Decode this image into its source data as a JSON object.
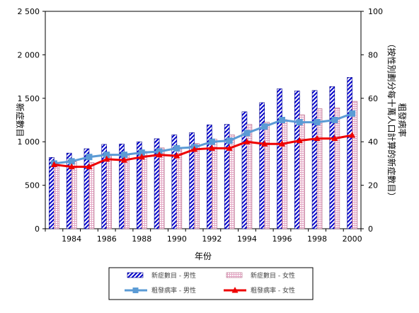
{
  "chart_data": {
    "type": "bar",
    "x": [
      1983,
      1984,
      1985,
      1986,
      1987,
      1988,
      1989,
      1990,
      1991,
      1992,
      1993,
      1994,
      1995,
      1996,
      1997,
      1998,
      1999,
      2000
    ],
    "x_tick_labels": [
      "1984",
      "1986",
      "1988",
      "1990",
      "1992",
      "1994",
      "1996",
      "1998",
      "2000"
    ],
    "x_tick_values": [
      1984,
      1986,
      1988,
      1990,
      1992,
      1994,
      1996,
      1998,
      2000
    ],
    "xlabel": "年份",
    "ylabel_left": "新症數目",
    "ylabel_right": "粗發病率\n（按性別劃分每十萬人口計算的新症數目）",
    "ylim_left": [
      0,
      2500
    ],
    "ylim_right": [
      0,
      100
    ],
    "y_ticks_left": [
      "0",
      "500",
      "1 000",
      "1 500",
      "2 000",
      "2 500"
    ],
    "y_ticks_right": [
      "0",
      "20",
      "40",
      "60",
      "80",
      "100"
    ],
    "series": [
      {
        "name": "新症數目 - 男性",
        "kind": "bar",
        "axis": "left",
        "color": "#0000cc",
        "values": [
          820,
          870,
          920,
          970,
          975,
          1000,
          1035,
          1080,
          1105,
          1195,
          1200,
          1345,
          1450,
          1610,
          1585,
          1590,
          1635,
          1740
        ]
      },
      {
        "name": "新症數目 - 女性",
        "kind": "bar",
        "axis": "left",
        "color": "#cc6699",
        "values": [
          740,
          770,
          760,
          840,
          850,
          890,
          930,
          930,
          980,
          1030,
          1080,
          1200,
          1225,
          1255,
          1310,
          1380,
          1390,
          1465
        ]
      },
      {
        "name": "粗發病率 - 男性",
        "kind": "line",
        "axis": "right",
        "color": "#5b9bd5",
        "values": [
          30,
          31,
          33,
          34,
          34,
          35,
          35.5,
          37,
          37.5,
          40,
          40.5,
          44,
          47,
          50,
          49,
          49,
          50,
          53
        ]
      },
      {
        "name": "粗發病率 - 女性",
        "kind": "line",
        "axis": "right",
        "color": "#ee0000",
        "values": [
          29.5,
          28.5,
          28.5,
          32,
          31.5,
          33,
          34,
          33.5,
          36.5,
          37,
          37,
          40,
          39,
          39,
          40.5,
          41.5,
          41.5,
          43
        ]
      }
    ],
    "legend_position": "bottom",
    "grid": false
  }
}
